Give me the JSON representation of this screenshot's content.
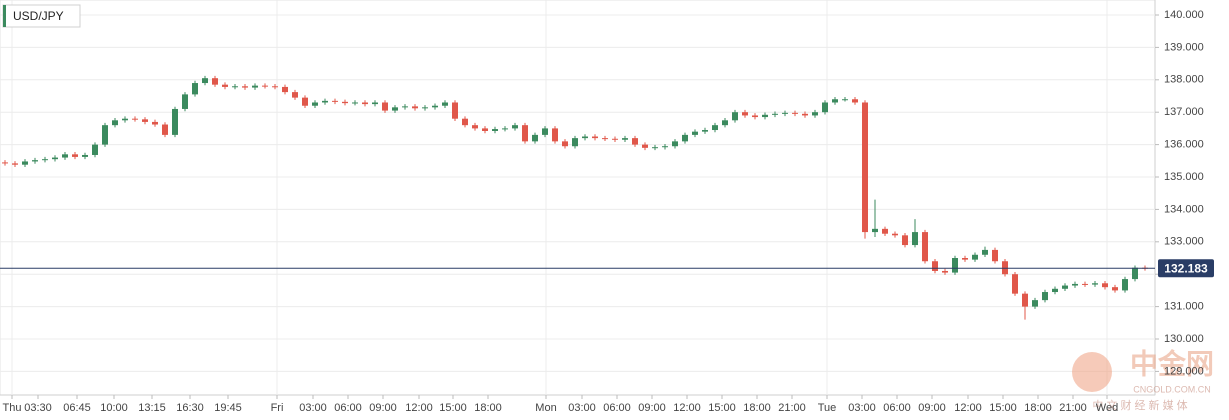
{
  "chart_data": {
    "type": "candlestick",
    "title": "USD/JPY",
    "up_color": "#3b8a5e",
    "down_color": "#e0574a",
    "grid": true,
    "ylim": [
      128.272,
      140.463
    ],
    "yticks": [
      {
        "value": 129,
        "label": "129.000"
      },
      {
        "value": 130,
        "label": "130.000"
      },
      {
        "value": 131,
        "label": "131.000"
      },
      {
        "value": 132,
        "label": "132.000"
      },
      {
        "value": 133,
        "label": "133.000"
      },
      {
        "value": 134,
        "label": "134.000"
      },
      {
        "value": 135,
        "label": "135.000"
      },
      {
        "value": 136,
        "label": "136.000"
      },
      {
        "value": 137,
        "label": "137.000"
      },
      {
        "value": 138,
        "label": "138.000"
      },
      {
        "value": 139,
        "label": "139.000"
      },
      {
        "value": 140,
        "label": "140.000"
      }
    ],
    "xlim": [
      -0.5,
      115
    ],
    "xticks": [
      {
        "value": 0.7,
        "label": "Thu"
      },
      {
        "value": 3.3,
        "label": "03:30"
      },
      {
        "value": 7.2,
        "label": "06:45"
      },
      {
        "value": 10.9,
        "label": "10:00"
      },
      {
        "value": 14.7,
        "label": "13:15"
      },
      {
        "value": 18.5,
        "label": "16:30"
      },
      {
        "value": 22.3,
        "label": "19:45"
      },
      {
        "value": 27.2,
        "label": "Fri"
      },
      {
        "value": 30.8,
        "label": "03:00"
      },
      {
        "value": 34.3,
        "label": "06:00"
      },
      {
        "value": 37.8,
        "label": "09:00"
      },
      {
        "value": 41.4,
        "label": "12:00"
      },
      {
        "value": 44.8,
        "label": "15:00"
      },
      {
        "value": 48.3,
        "label": "18:00"
      },
      {
        "value": 54.1,
        "label": "Mon"
      },
      {
        "value": 57.7,
        "label": "03:00"
      },
      {
        "value": 61.2,
        "label": "06:00"
      },
      {
        "value": 64.7,
        "label": "09:00"
      },
      {
        "value": 68.2,
        "label": "12:00"
      },
      {
        "value": 71.7,
        "label": "15:00"
      },
      {
        "value": 75.2,
        "label": "18:00"
      },
      {
        "value": 78.7,
        "label": "21:00"
      },
      {
        "value": 82.2,
        "label": "Tue"
      },
      {
        "value": 85.7,
        "label": "03:00"
      },
      {
        "value": 89.2,
        "label": "06:00"
      },
      {
        "value": 92.7,
        "label": "09:00"
      },
      {
        "value": 96.3,
        "label": "12:00"
      },
      {
        "value": 99.8,
        "label": "15:00"
      },
      {
        "value": 103.3,
        "label": "18:00"
      },
      {
        "value": 106.8,
        "label": "21:00"
      },
      {
        "value": 110.2,
        "label": "Wed"
      }
    ],
    "last_price": {
      "value": 132.183,
      "label": "132.183"
    },
    "watermark": [
      "中金网",
      "CNGOLD.COM.CN",
      "中 文 财 经 新 媒 体"
    ],
    "x": [
      0,
      1,
      2,
      3,
      4,
      5,
      6,
      7,
      8,
      9,
      10,
      11,
      12,
      13,
      14,
      15,
      16,
      17,
      18,
      19,
      20,
      21,
      22,
      23,
      24,
      25,
      26,
      27,
      28,
      29,
      30,
      31,
      32,
      33,
      34,
      35,
      36,
      37,
      38,
      39,
      40,
      41,
      42,
      43,
      44,
      45,
      46,
      47,
      48,
      49,
      50,
      51,
      52,
      53,
      54,
      55,
      56,
      57,
      58,
      59,
      60,
      61,
      62,
      63,
      64,
      65,
      66,
      67,
      68,
      69,
      70,
      71,
      72,
      73,
      74,
      75,
      76,
      77,
      78,
      79,
      80,
      81,
      82,
      83,
      84,
      85,
      86,
      87,
      88,
      89,
      90,
      91,
      92,
      93,
      94,
      95,
      96,
      97,
      98,
      99,
      100,
      101,
      102,
      103,
      104,
      105,
      106,
      107,
      108,
      109,
      110,
      111,
      112,
      113,
      114
    ],
    "candles": [
      [
        135.45,
        135.52,
        135.35,
        135.42
      ],
      [
        135.42,
        135.49,
        135.31,
        135.38
      ],
      [
        135.38,
        135.55,
        135.31,
        135.48
      ],
      [
        135.48,
        135.59,
        135.41,
        135.52
      ],
      [
        135.52,
        135.62,
        135.45,
        135.55
      ],
      [
        135.55,
        135.67,
        135.48,
        135.6
      ],
      [
        135.6,
        135.77,
        135.53,
        135.7
      ],
      [
        135.7,
        135.77,
        135.55,
        135.62
      ],
      [
        135.62,
        135.75,
        135.55,
        135.68
      ],
      [
        135.68,
        136.07,
        135.61,
        136.0
      ],
      [
        136.0,
        136.67,
        135.93,
        136.6
      ],
      [
        136.6,
        136.82,
        136.53,
        136.75
      ],
      [
        136.75,
        136.87,
        136.68,
        136.8
      ],
      [
        136.8,
        136.87,
        136.71,
        136.78
      ],
      [
        136.78,
        136.85,
        136.63,
        136.7
      ],
      [
        136.7,
        136.77,
        136.55,
        136.62
      ],
      [
        136.62,
        136.69,
        136.23,
        136.3
      ],
      [
        136.3,
        137.17,
        136.23,
        137.1
      ],
      [
        137.1,
        137.62,
        137.03,
        137.55
      ],
      [
        137.55,
        137.97,
        137.48,
        137.9
      ],
      [
        137.9,
        138.12,
        137.83,
        138.05
      ],
      [
        138.05,
        138.12,
        137.78,
        137.85
      ],
      [
        137.85,
        137.92,
        137.71,
        137.78
      ],
      [
        137.78,
        137.87,
        137.71,
        137.8
      ],
      [
        137.8,
        137.87,
        137.69,
        137.76
      ],
      [
        137.76,
        137.89,
        137.69,
        137.82
      ],
      [
        137.82,
        137.89,
        137.73,
        137.8
      ],
      [
        137.8,
        137.87,
        137.71,
        137.78
      ],
      [
        137.78,
        137.85,
        137.55,
        137.62
      ],
      [
        137.62,
        137.69,
        137.38,
        137.45
      ],
      [
        137.45,
        137.52,
        137.13,
        137.2
      ],
      [
        137.2,
        137.37,
        137.13,
        137.3
      ],
      [
        137.3,
        137.42,
        137.23,
        137.35
      ],
      [
        137.35,
        137.42,
        137.25,
        137.32
      ],
      [
        137.32,
        137.39,
        137.21,
        137.28
      ],
      [
        137.28,
        137.37,
        137.21,
        137.3
      ],
      [
        137.3,
        137.37,
        137.18,
        137.25
      ],
      [
        137.25,
        137.37,
        137.18,
        137.3
      ],
      [
        137.3,
        137.37,
        136.98,
        137.05
      ],
      [
        137.05,
        137.22,
        136.98,
        137.15
      ],
      [
        137.15,
        137.25,
        137.08,
        137.18
      ],
      [
        137.18,
        137.25,
        137.05,
        137.12
      ],
      [
        137.12,
        137.22,
        137.05,
        137.15
      ],
      [
        137.15,
        137.27,
        137.08,
        137.2
      ],
      [
        137.2,
        137.37,
        137.13,
        137.3
      ],
      [
        137.3,
        137.37,
        136.73,
        136.8
      ],
      [
        136.8,
        136.87,
        136.53,
        136.6
      ],
      [
        136.6,
        136.67,
        136.43,
        136.5
      ],
      [
        136.5,
        136.57,
        136.35,
        136.42
      ],
      [
        136.42,
        136.55,
        136.35,
        136.48
      ],
      [
        136.48,
        136.57,
        136.41,
        136.5
      ],
      [
        136.5,
        136.67,
        136.43,
        136.6
      ],
      [
        136.6,
        136.67,
        136.03,
        136.1
      ],
      [
        136.1,
        136.37,
        136.03,
        136.3
      ],
      [
        136.3,
        136.57,
        136.23,
        136.5
      ],
      [
        136.5,
        136.57,
        136.03,
        136.1
      ],
      [
        136.1,
        136.17,
        135.88,
        135.95
      ],
      [
        135.95,
        136.27,
        135.88,
        136.2
      ],
      [
        136.2,
        136.32,
        136.13,
        136.25
      ],
      [
        136.25,
        136.32,
        136.13,
        136.2
      ],
      [
        136.2,
        136.27,
        136.11,
        136.18
      ],
      [
        136.18,
        136.25,
        136.08,
        136.15
      ],
      [
        136.15,
        136.27,
        136.08,
        136.2
      ],
      [
        136.2,
        136.27,
        135.93,
        136.0
      ],
      [
        136.0,
        136.07,
        135.83,
        135.9
      ],
      [
        135.9,
        135.99,
        135.83,
        135.92
      ],
      [
        135.92,
        136.02,
        135.85,
        135.95
      ],
      [
        135.95,
        136.17,
        135.88,
        136.1
      ],
      [
        136.1,
        136.37,
        136.03,
        136.3
      ],
      [
        136.3,
        136.47,
        136.23,
        136.4
      ],
      [
        136.4,
        136.52,
        136.33,
        136.45
      ],
      [
        136.45,
        136.67,
        136.38,
        136.6
      ],
      [
        136.6,
        136.82,
        136.53,
        136.75
      ],
      [
        136.75,
        137.07,
        136.68,
        137.0
      ],
      [
        137.0,
        137.07,
        136.83,
        136.9
      ],
      [
        136.9,
        136.97,
        136.78,
        136.85
      ],
      [
        136.85,
        136.99,
        136.78,
        136.92
      ],
      [
        136.92,
        137.02,
        136.85,
        136.95
      ],
      [
        136.95,
        137.05,
        136.88,
        136.98
      ],
      [
        136.98,
        137.05,
        136.88,
        136.95
      ],
      [
        136.95,
        137.02,
        136.83,
        136.9
      ],
      [
        136.9,
        137.07,
        136.83,
        137.0
      ],
      [
        137.0,
        137.37,
        136.93,
        137.3
      ],
      [
        137.3,
        137.47,
        137.23,
        137.4
      ],
      [
        137.4,
        137.47,
        137.33,
        137.4
      ],
      [
        137.4,
        137.47,
        137.23,
        137.3
      ],
      [
        137.3,
        137.37,
        133.1,
        133.3
      ],
      [
        133.3,
        134.3,
        133.15,
        133.4
      ],
      [
        133.4,
        133.47,
        133.18,
        133.25
      ],
      [
        133.25,
        133.32,
        133.13,
        133.2
      ],
      [
        133.2,
        133.27,
        132.83,
        132.9
      ],
      [
        132.9,
        133.7,
        132.83,
        133.3
      ],
      [
        133.3,
        133.37,
        132.33,
        132.4
      ],
      [
        132.4,
        132.47,
        132.03,
        132.1
      ],
      [
        132.1,
        132.17,
        131.98,
        132.05
      ],
      [
        132.05,
        132.57,
        131.98,
        132.5
      ],
      [
        132.5,
        132.57,
        132.38,
        132.45
      ],
      [
        132.45,
        132.67,
        132.38,
        132.6
      ],
      [
        132.6,
        132.85,
        132.53,
        132.75
      ],
      [
        132.75,
        132.82,
        132.33,
        132.4
      ],
      [
        132.4,
        132.47,
        131.93,
        132.0
      ],
      [
        132.0,
        132.07,
        131.33,
        131.4
      ],
      [
        131.4,
        131.47,
        130.6,
        131.0
      ],
      [
        131.0,
        131.27,
        130.93,
        131.2
      ],
      [
        131.2,
        131.52,
        131.13,
        131.45
      ],
      [
        131.45,
        131.62,
        131.38,
        131.55
      ],
      [
        131.55,
        131.72,
        131.48,
        131.65
      ],
      [
        131.65,
        131.77,
        131.58,
        131.7
      ],
      [
        131.7,
        131.77,
        131.61,
        131.68
      ],
      [
        131.68,
        131.79,
        131.61,
        131.72
      ],
      [
        131.72,
        131.79,
        131.53,
        131.6
      ],
      [
        131.6,
        131.67,
        131.43,
        131.5
      ],
      [
        131.5,
        131.92,
        131.43,
        131.85
      ],
      [
        131.85,
        132.27,
        131.78,
        132.2
      ],
      [
        132.2,
        132.27,
        132.11,
        132.18
      ]
    ]
  }
}
